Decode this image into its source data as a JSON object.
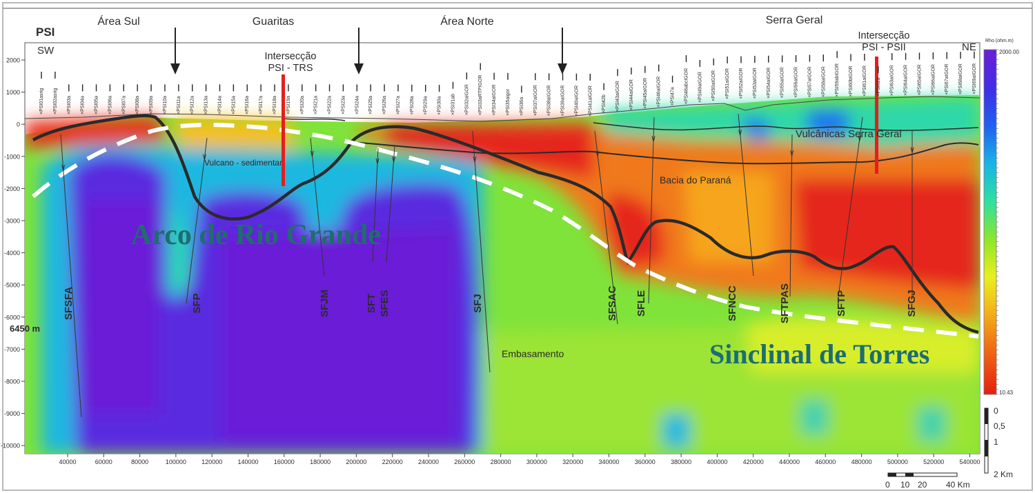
{
  "title": "PSI",
  "directions": {
    "left": "SW",
    "right": "NE"
  },
  "regions": [
    "Área Sul",
    "Guaritas",
    "Área Norte",
    "Serra Geral"
  ],
  "intersections": [
    "Intersecção\nPSI - TRS",
    "Intersecção\nPSI - PSII"
  ],
  "depth_ticks": [
    "2000",
    "1000",
    "0",
    "-1000",
    "-2000",
    "-3000",
    "-4000",
    "-5000",
    "-6000",
    "-7000",
    "-8000",
    "-9000",
    "-10000"
  ],
  "x_ticks": [
    "40000",
    "60000",
    "80000",
    "100000",
    "120000",
    "140000",
    "160000",
    "180000",
    "200000",
    "220000",
    "240000",
    "260000",
    "280000",
    "300000",
    "320000",
    "340000",
    "360000",
    "380000",
    "400000",
    "420000",
    "440000",
    "460000",
    "480000",
    "500000",
    "520000",
    "540000"
  ],
  "depth_marker": "6450 m",
  "faults": [
    "SFSFA",
    "SFP",
    "SFJM",
    "SFT",
    "SFES",
    "SFJ",
    "SFSAC",
    "SFLE",
    "SFNCC",
    "SFTPAS",
    "SFTP",
    "SFGJ"
  ],
  "units": [
    "Vulcano - sedimentar",
    "Vulcânicas Serra Geral",
    "Bacia do Paraná",
    "Embasamento"
  ],
  "structures": [
    "Arco de Rio Grande",
    "Sinclinal de Torres"
  ],
  "stations": [
    "PSI01asrig",
    "PSI02asrig",
    "PSI03a",
    "PSI04a",
    "PSI05a",
    "PSI06a",
    "PSI07a",
    "PSI08a",
    "PSI09a",
    "PSI10a",
    "PSI11a",
    "PSI12a",
    "PSI13a",
    "PSI14a",
    "PSI15a",
    "PSI16a",
    "PSI17a",
    "PSI18a",
    "PSI19a",
    "PSI20a",
    "PSI21a",
    "PSI22a",
    "PSI23a",
    "PSI24a",
    "PSI25a",
    "PSI26a",
    "PSI27a",
    "PSI28a",
    "PSI29a",
    "PSI30a",
    "PSI31ab",
    "PSI32aIGOR",
    "PSI33aRTPIGOR",
    "PSI34aIGOR",
    "PSI35aigor",
    "PSI36a",
    "PSI37aIGOR",
    "PSI38aIGOR",
    "PSI39aIGOR",
    "PSI40aIGOR",
    "PSI41aIGOR",
    "PSI42b",
    "PSI43aIGOR",
    "PSI44aIGOR",
    "PSI45aIGOR",
    "PSI46aIGOR",
    "PSI47a",
    "PSI48abcIGOR",
    "PSI49aIGOR",
    "PSI50aIGOR",
    "PSI51aIGOR",
    "PSI52aIGOR",
    "PSI53aIGOR",
    "PSI54aIGOR",
    "PSI55aIGOR",
    "PSI56aIGOR",
    "PSI57aIGOR",
    "PSI58aIGOR",
    "PSI59abIGOR",
    "PSI60bIGOR",
    "PSI61aIGOR",
    "PSI62a",
    "PSI63aIGOR",
    "PSI64aIGOR",
    "PSI65aIGOR",
    "PSI66aIGOR",
    "PSI67aIGOR",
    "PSI68aIGOR",
    "PSI69aIGOR"
  ],
  "colorbar": {
    "title": "Rho (ohm.m)",
    "max": "2000.00",
    "min": "10.43",
    "stops": [
      "#6a1fd6",
      "#3f2fe8",
      "#2060f0",
      "#19b3e6",
      "#2de0a0",
      "#8ee62a",
      "#e8f01e",
      "#f4b21a",
      "#f06a14",
      "#e51e12"
    ]
  },
  "scale_v": [
    "0",
    "0,5",
    "1",
    "2 Km"
  ],
  "scale_h": [
    "0",
    "10",
    "20",
    "40 Km"
  ]
}
